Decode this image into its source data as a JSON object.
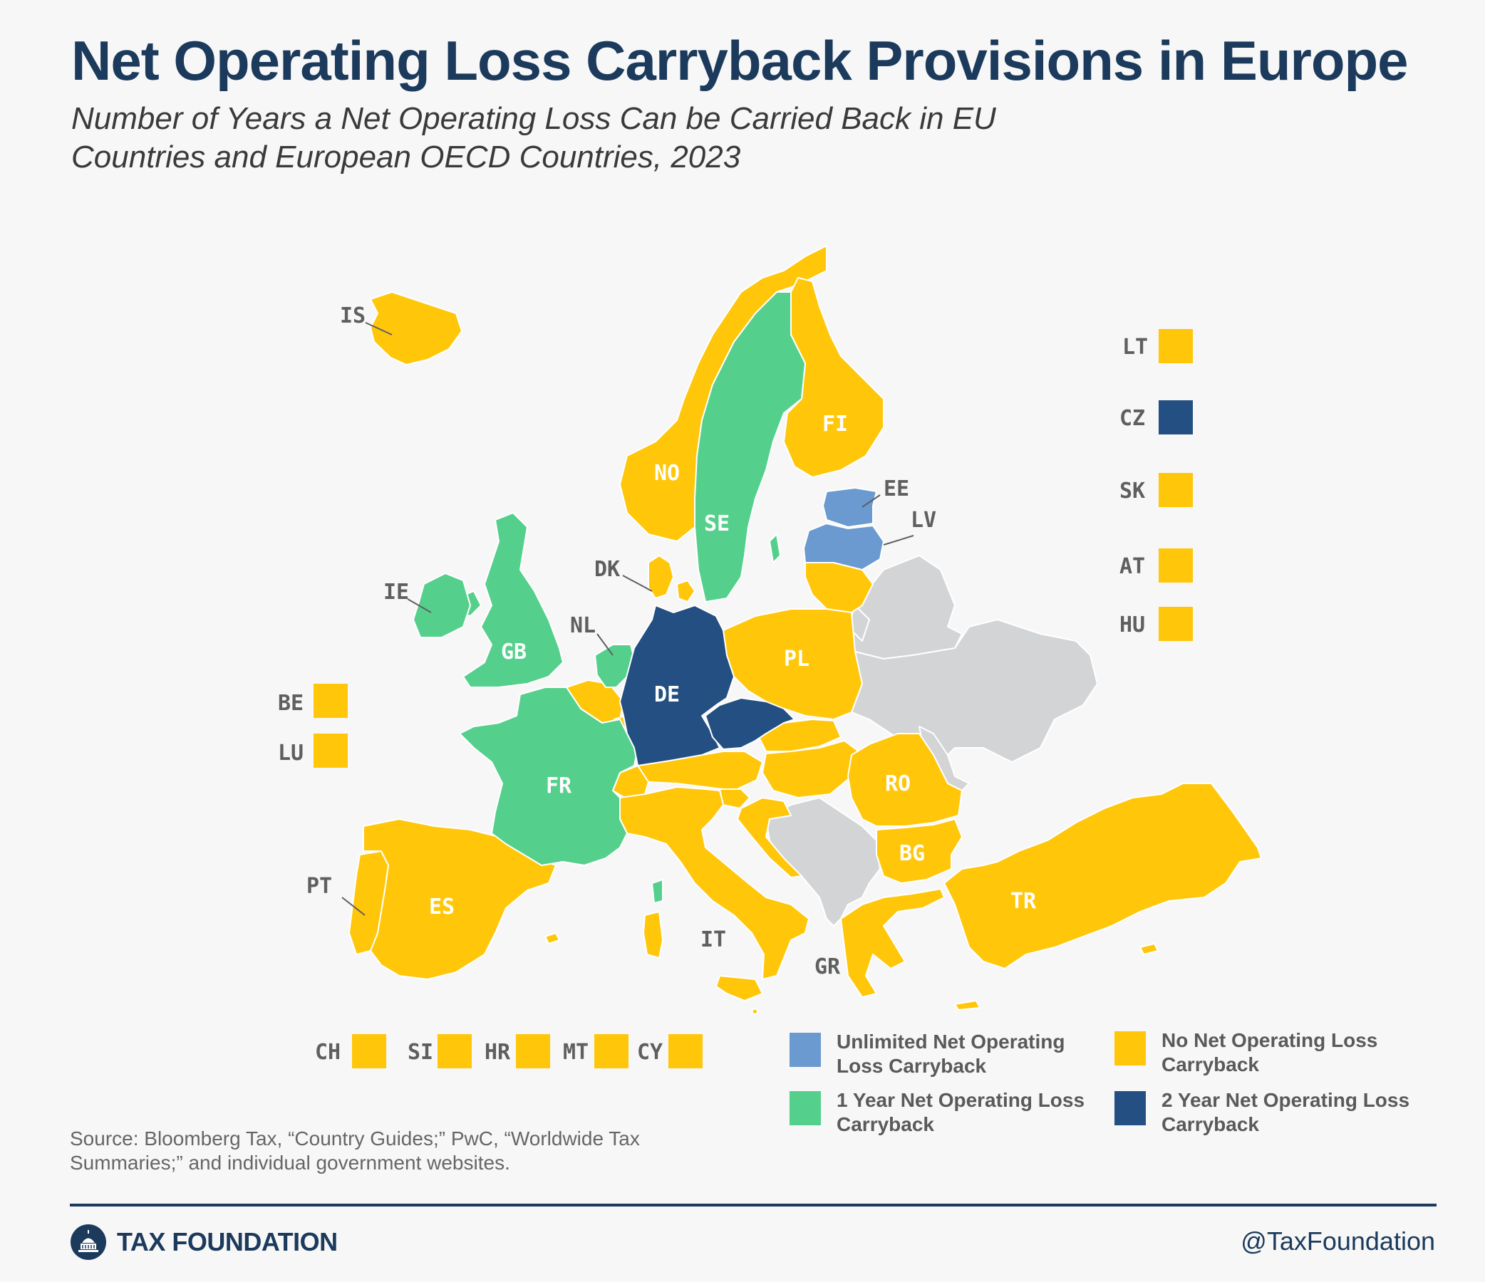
{
  "header": {
    "title": "Net Operating Loss Carryback Provisions in Europe",
    "subtitle_line1": "Number of Years a Net Operating Loss Can be Carried Back in EU",
    "subtitle_line2": "Countries and European OECD Countries, 2023"
  },
  "colors": {
    "unlimited": "#6a9ad0",
    "one_year": "#55d08c",
    "none": "#ffc60a",
    "two_year": "#244f82",
    "no_data": "#d3d4d6"
  },
  "map_labels": {
    "IS": "IS",
    "NO": "NO",
    "SE": "SE",
    "FI": "FI",
    "EE": "EE",
    "LV": "LV",
    "DK": "DK",
    "IE": "IE",
    "GB": "GB",
    "NL": "NL",
    "DE": "DE",
    "PL": "PL",
    "FR": "FR",
    "RO": "RO",
    "BG": "BG",
    "PT": "PT",
    "ES": "ES",
    "IT": "IT",
    "GR": "GR",
    "TR": "TR"
  },
  "side_boxes_right": [
    {
      "code": "LT",
      "category": "none"
    },
    {
      "code": "CZ",
      "category": "two_year"
    },
    {
      "code": "SK",
      "category": "none"
    },
    {
      "code": "AT",
      "category": "none"
    },
    {
      "code": "HU",
      "category": "none"
    }
  ],
  "side_boxes_left": [
    {
      "code": "BE",
      "category": "none"
    },
    {
      "code": "LU",
      "category": "none"
    }
  ],
  "bottom_boxes": [
    {
      "code": "CH",
      "category": "none"
    },
    {
      "code": "SI",
      "category": "none"
    },
    {
      "code": "HR",
      "category": "none"
    },
    {
      "code": "MT",
      "category": "none"
    },
    {
      "code": "CY",
      "category": "none"
    }
  ],
  "legend": {
    "unlimited": "Unlimited Net Operating Loss Carryback",
    "one_year": "1 Year Net Operating Loss Carryback",
    "none": "No Net Operating Loss Carryback",
    "two_year": "2 Year Net Operating Loss Carryback"
  },
  "source": "Source: Bloomberg Tax, “Country Guides;” PwC, “Worldwide Tax Summaries;” and individual government websites.",
  "footer": {
    "brand": "TAX FOUNDATION",
    "handle": "@TaxFoundation"
  }
}
